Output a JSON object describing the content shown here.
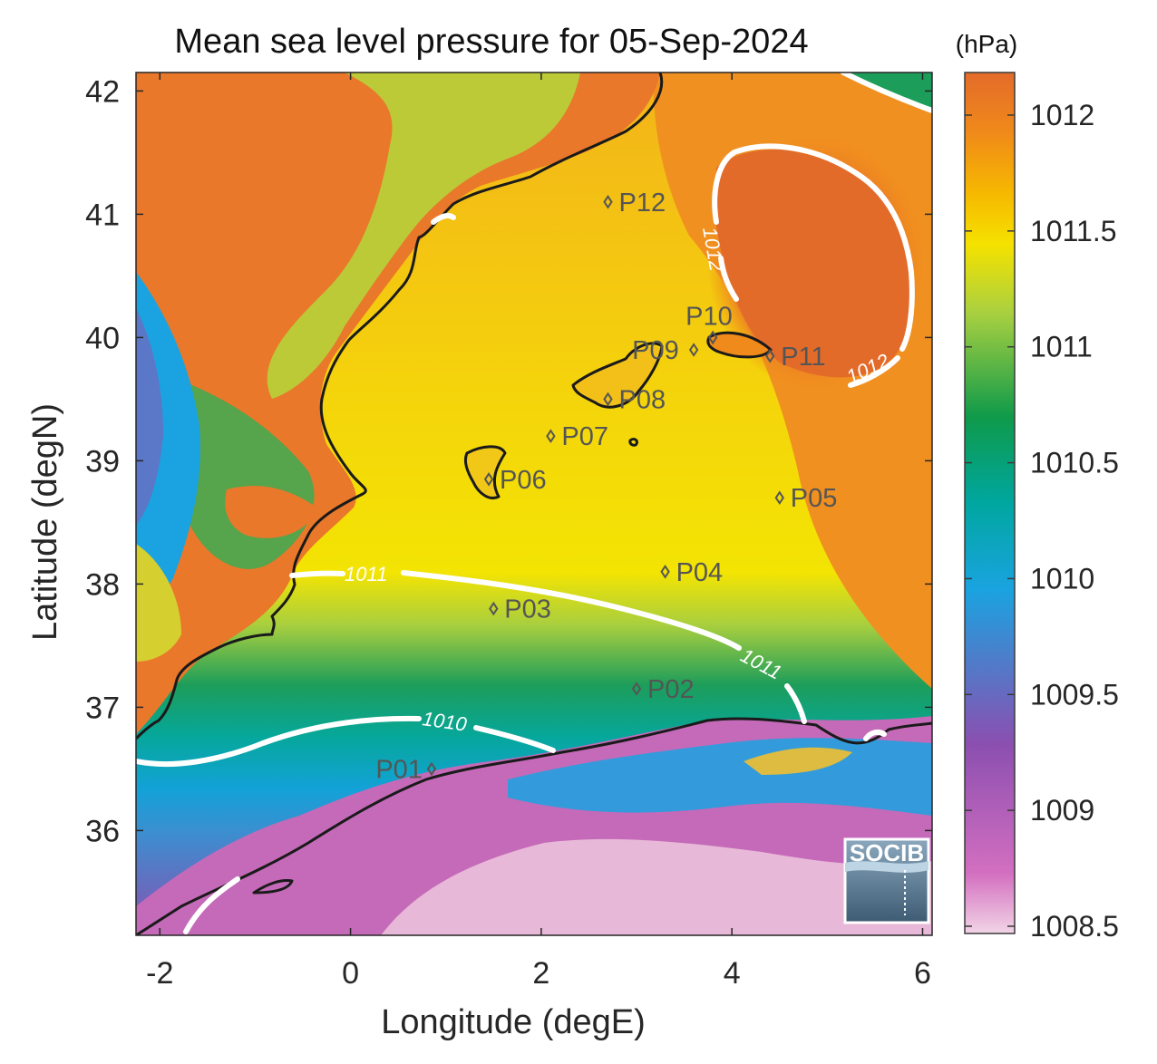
{
  "title": "Mean sea level pressure for 05-Sep-2024",
  "xlabel": "Longitude (degE)",
  "ylabel": "Latitude (degN)",
  "x_ticks": [
    "-2",
    "0",
    "2",
    "4",
    "6"
  ],
  "y_ticks": [
    "36",
    "37",
    "38",
    "39",
    "40",
    "41",
    "42"
  ],
  "colorbar": {
    "unit": "(hPa)",
    "ticks": [
      "1008.5",
      "1009",
      "1009.5",
      "1010",
      "1010.5",
      "1011",
      "1011.5",
      "1012"
    ],
    "colormap": [
      "#f2d4e6",
      "#d36fc0",
      "#8b4fb0",
      "#1aa3e0",
      "#00a7a0",
      "#0f9a4a",
      "#a8d040",
      "#f5e200",
      "#f6b800",
      "#f08a1a",
      "#e36b2a"
    ]
  },
  "contour_labels": [
    "1012",
    "1012",
    "1011",
    "1011",
    "1010"
  ],
  "points": [
    {
      "label": "P01",
      "lon": 0.85,
      "lat": 36.5
    },
    {
      "label": "P02",
      "lon": 3.0,
      "lat": 37.15
    },
    {
      "label": "P03",
      "lon": 1.5,
      "lat": 37.8
    },
    {
      "label": "P04",
      "lon": 3.3,
      "lat": 38.1
    },
    {
      "label": "P05",
      "lon": 4.5,
      "lat": 38.7
    },
    {
      "label": "P06",
      "lon": 1.45,
      "lat": 38.85
    },
    {
      "label": "P07",
      "lon": 2.1,
      "lat": 39.2
    },
    {
      "label": "P08",
      "lon": 2.7,
      "lat": 39.5
    },
    {
      "label": "P09",
      "lon": 3.6,
      "lat": 39.9
    },
    {
      "label": "P10",
      "lon": 3.8,
      "lat": 40.0
    },
    {
      "label": "P11",
      "lon": 4.4,
      "lat": 39.85
    },
    {
      "label": "P12",
      "lon": 2.7,
      "lat": 41.1
    }
  ],
  "logo": "SOCIB"
}
